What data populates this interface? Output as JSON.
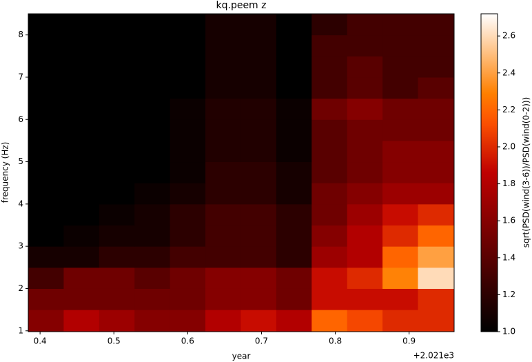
{
  "chart_data": {
    "type": "heatmap",
    "title": "kq.peem z",
    "x_label": "year",
    "x_offset_label": "+2.021e3",
    "y_label": "frequency (Hz)",
    "colorbar_label": "sqrt(PSD(wind(3-6))/PSD(wind(0-2)))",
    "colormap": "gist_heat",
    "xlim": [
      0.384,
      0.961
    ],
    "ylim": [
      0.98,
      8.5
    ],
    "xticks": [
      0.4,
      0.5,
      0.6,
      0.7,
      0.8,
      0.9
    ],
    "yticks": [
      1,
      2,
      3,
      4,
      5,
      6,
      7,
      8
    ],
    "zlim": [
      1.0,
      2.72
    ],
    "zticks": [
      {
        "value": 1.0,
        "label": "1.0"
      },
      {
        "value": 1.2,
        "label": "1.2"
      },
      {
        "value": 1.4,
        "label": "1.4"
      },
      {
        "value": 1.6,
        "label": "1.6"
      },
      {
        "value": 1.8,
        "label": "1.8"
      },
      {
        "value": 2.0,
        "label": "2.0"
      },
      {
        "value": 2.2,
        "label": "2.2"
      },
      {
        "value": 2.4,
        "label": "2.4"
      },
      {
        "value": 2.6,
        "label": "2.6"
      }
    ],
    "x_edges": [
      0.384,
      0.432,
      0.48,
      0.528,
      0.576,
      0.624,
      0.672,
      0.72,
      0.768,
      0.816,
      0.864,
      0.912,
      0.961
    ],
    "y_edges": [
      0.98,
      1.5,
      2,
      2.5,
      3,
      3.5,
      4,
      4.5,
      5,
      5.5,
      6,
      6.5,
      7,
      7.5,
      8,
      8.5
    ],
    "z": [
      [
        1.6,
        1.8,
        1.7,
        1.6,
        1.6,
        1.8,
        1.9,
        1.8,
        2.2,
        2.1,
        2.0,
        2.0
      ],
      [
        1.5,
        1.5,
        1.5,
        1.5,
        1.5,
        1.6,
        1.6,
        1.5,
        1.9,
        1.9,
        1.9,
        2.0
      ],
      [
        1.3,
        1.5,
        1.5,
        1.4,
        1.5,
        1.6,
        1.6,
        1.5,
        1.9,
        2.0,
        2.3,
        2.6
      ],
      [
        1.1,
        1.1,
        1.2,
        1.2,
        1.3,
        1.3,
        1.3,
        1.2,
        1.7,
        1.8,
        2.2,
        2.4
      ],
      [
        1.0,
        1.05,
        1.1,
        1.1,
        1.2,
        1.3,
        1.3,
        1.2,
        1.6,
        1.8,
        2.0,
        2.2
      ],
      [
        1.0,
        1.0,
        1.05,
        1.1,
        1.2,
        1.3,
        1.3,
        1.2,
        1.5,
        1.7,
        1.9,
        2.0
      ],
      [
        1.0,
        1.0,
        1.0,
        1.05,
        1.1,
        1.2,
        1.2,
        1.1,
        1.5,
        1.6,
        1.7,
        1.7
      ],
      [
        1.0,
        1.0,
        1.0,
        1.0,
        1.05,
        1.2,
        1.2,
        1.1,
        1.4,
        1.5,
        1.6,
        1.6
      ],
      [
        1.0,
        1.0,
        1.0,
        1.0,
        1.05,
        1.15,
        1.15,
        1.05,
        1.4,
        1.5,
        1.6,
        1.6
      ],
      [
        1.0,
        1.0,
        1.0,
        1.0,
        1.05,
        1.15,
        1.15,
        1.05,
        1.4,
        1.5,
        1.5,
        1.5
      ],
      [
        1.0,
        1.0,
        1.0,
        1.0,
        1.05,
        1.15,
        1.15,
        1.05,
        1.5,
        1.6,
        1.5,
        1.5
      ],
      [
        1.0,
        1.0,
        1.0,
        1.0,
        1.0,
        1.1,
        1.1,
        1.0,
        1.3,
        1.4,
        1.3,
        1.4
      ],
      [
        1.0,
        1.0,
        1.0,
        1.0,
        1.0,
        1.1,
        1.1,
        1.0,
        1.3,
        1.4,
        1.3,
        1.3
      ],
      [
        1.0,
        1.0,
        1.0,
        1.0,
        1.0,
        1.1,
        1.1,
        1.0,
        1.3,
        1.3,
        1.3,
        1.3
      ],
      [
        1.0,
        1.0,
        1.0,
        1.0,
        1.0,
        1.1,
        1.1,
        1.0,
        1.2,
        1.3,
        1.3,
        1.3
      ]
    ]
  }
}
